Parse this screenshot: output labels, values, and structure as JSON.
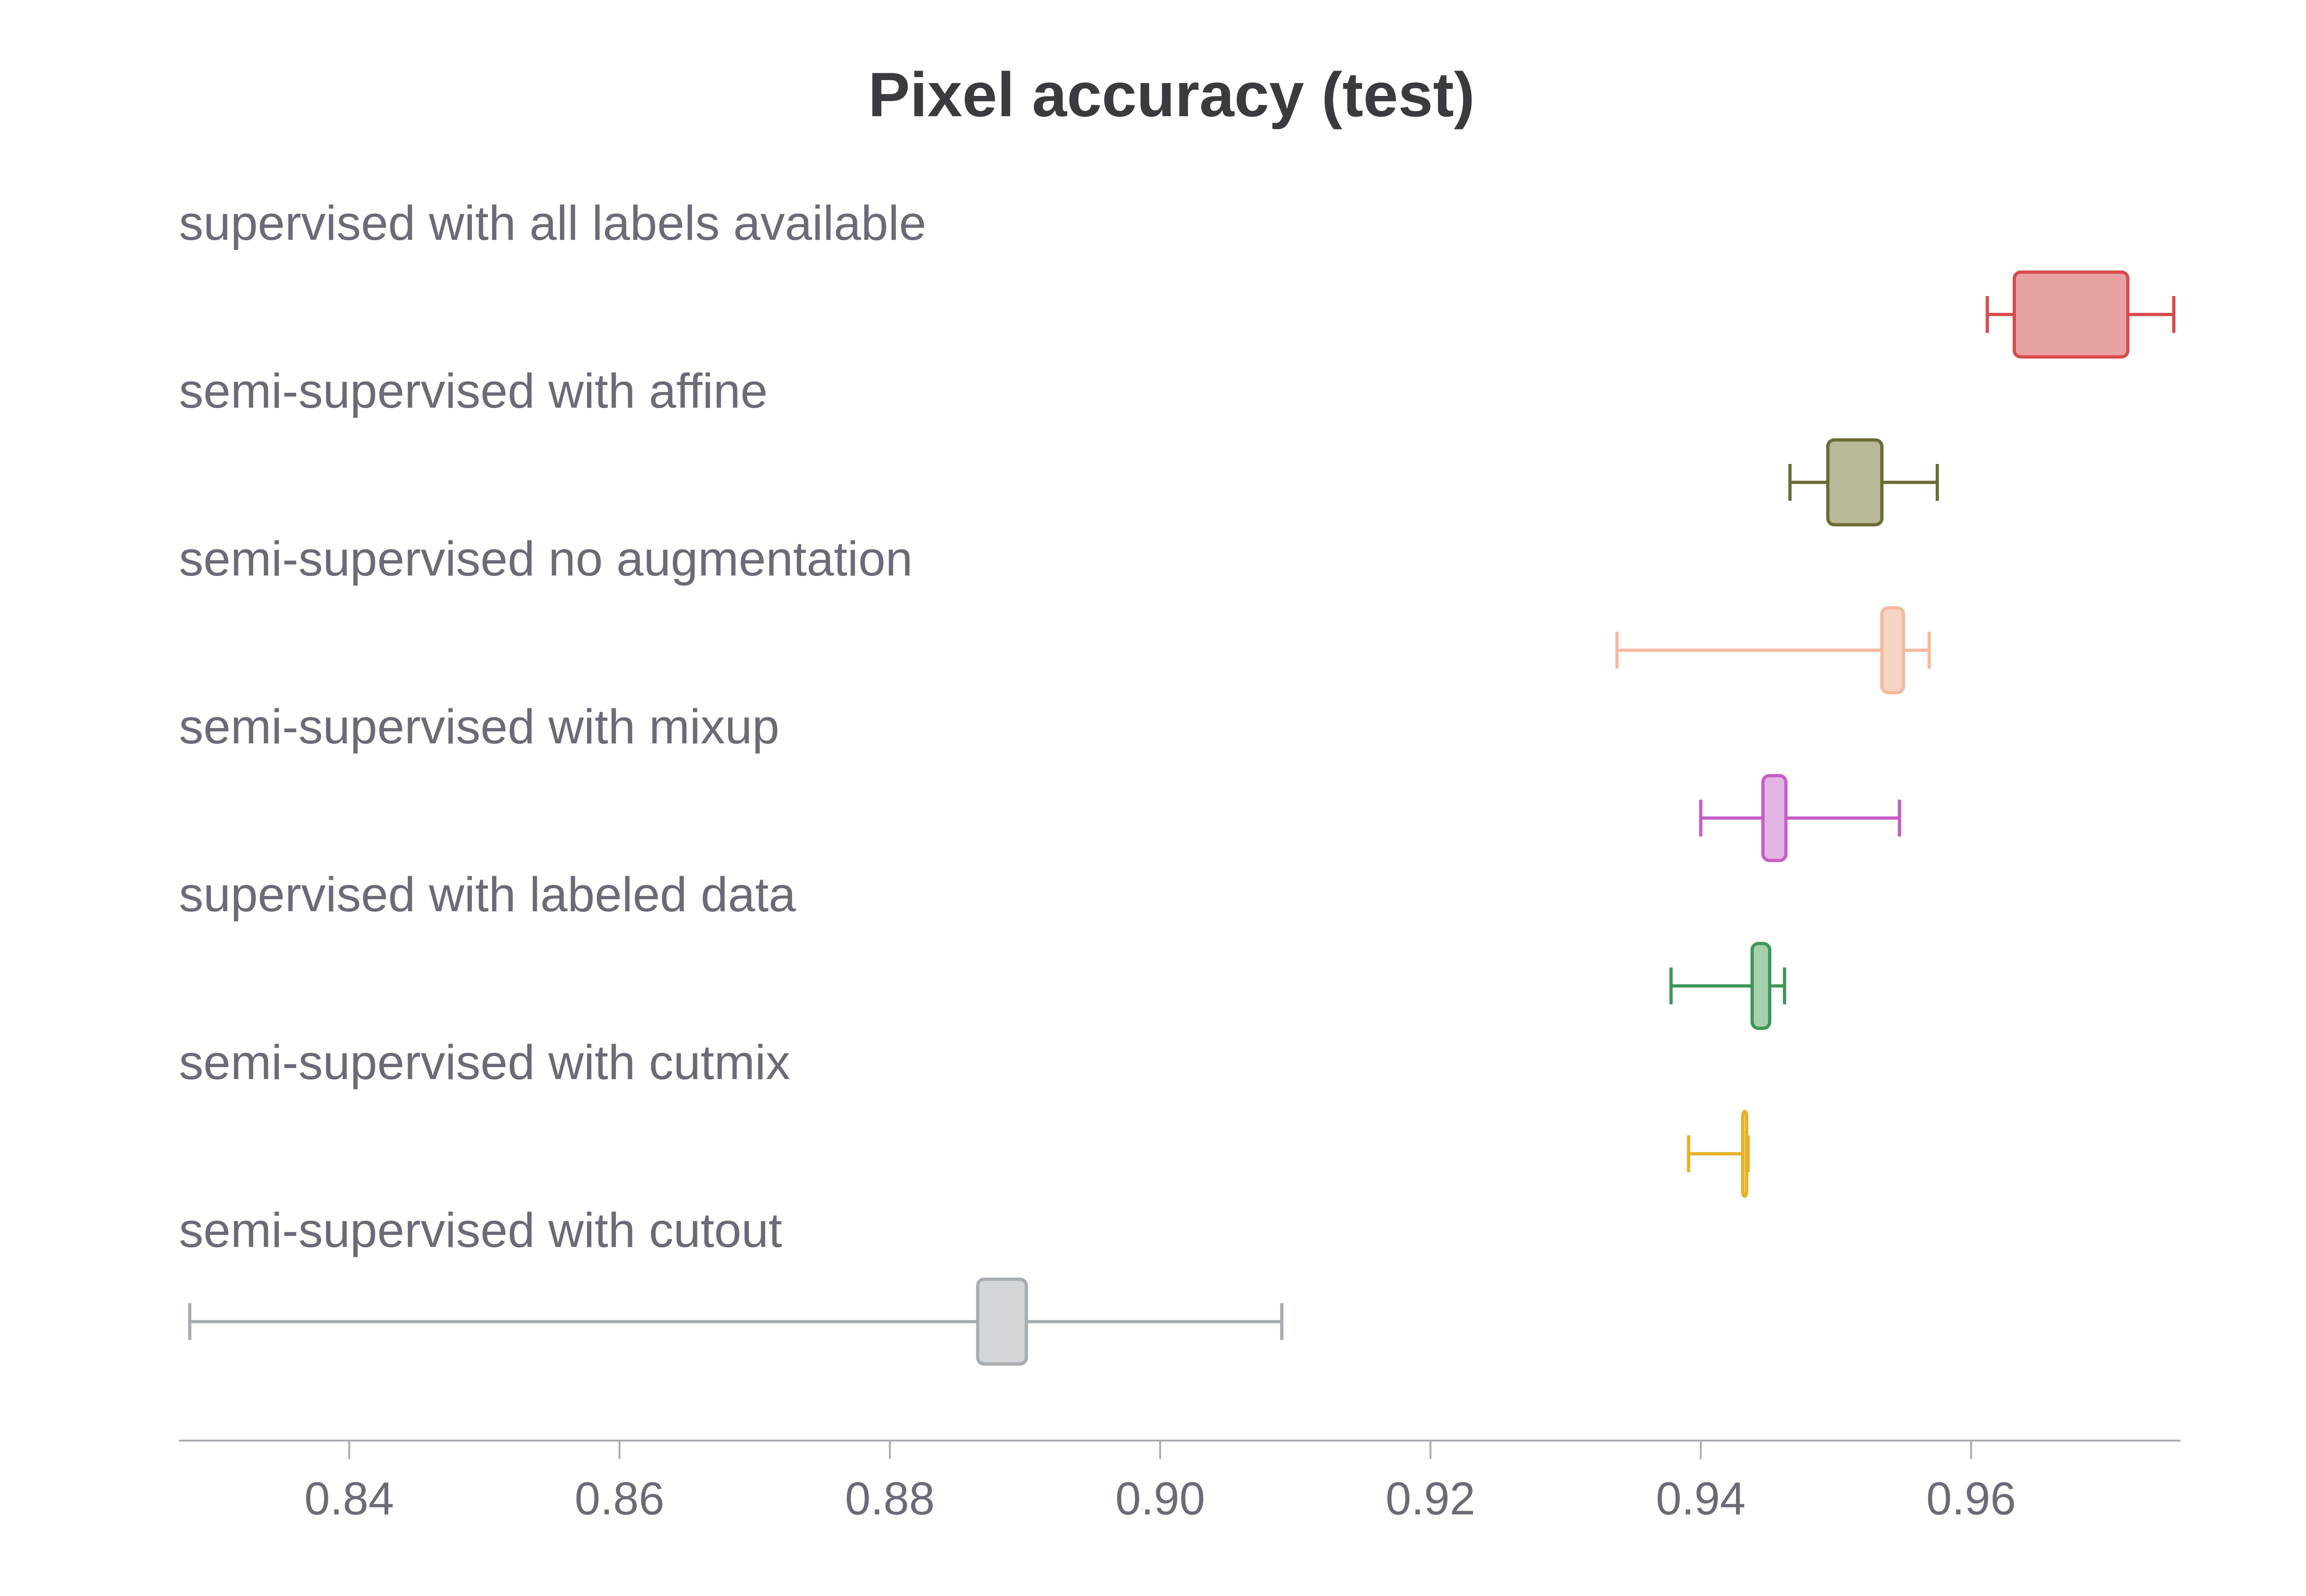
{
  "chart_data": {
    "type": "box",
    "orientation": "horizontal",
    "title": "Pixel accuracy (test)",
    "xlabel": "",
    "ylabel": "",
    "xlim": [
      0.8274,
      0.9755
    ],
    "xticks": [
      0.84,
      0.86,
      0.88,
      0.9,
      0.92,
      0.94,
      0.96
    ],
    "xtick_labels": [
      "0.84",
      "0.86",
      "0.88",
      "0.90",
      "0.92",
      "0.94",
      "0.96"
    ],
    "grid": false,
    "legend": "none",
    "series": [
      {
        "name": "supervised with all labels available",
        "color": "#d94a4a",
        "fill": "#e8a2a2",
        "min": 0.9612,
        "q1": 0.9632,
        "q3": 0.9716,
        "max": 0.975
      },
      {
        "name": "semi-supervised with affine",
        "color": "#6b6b35",
        "fill": "#b9b998",
        "min": 0.9466,
        "q1": 0.9494,
        "q3": 0.9534,
        "max": 0.9575
      },
      {
        "name": "semi-supervised no augmentation",
        "color": "#f4b9a0",
        "fill": "#f7d4c4",
        "min": 0.9338,
        "q1": 0.9534,
        "q3": 0.955,
        "max": 0.9569
      },
      {
        "name": "semi-supervised with mixup",
        "color": "#c65cc8",
        "fill": "#e2b3e3",
        "min": 0.94,
        "q1": 0.9446,
        "q3": 0.9463,
        "max": 0.9547
      },
      {
        "name": "supervised with labeled data",
        "color": "#3f9557",
        "fill": "#a6d1ad",
        "min": 0.9378,
        "q1": 0.9438,
        "q3": 0.9451,
        "max": 0.9462
      },
      {
        "name": "semi-supervised with cutmix",
        "color": "#e8b028",
        "fill": "#f2d57f",
        "min": 0.9391,
        "q1": 0.9431,
        "q3": 0.9434,
        "max": 0.9435
      },
      {
        "name": "semi-supervised with cutout",
        "color": "#a7acb1",
        "fill": "#d3d6d9",
        "min": 0.8282,
        "q1": 0.8865,
        "q3": 0.8901,
        "max": 0.909
      }
    ]
  }
}
